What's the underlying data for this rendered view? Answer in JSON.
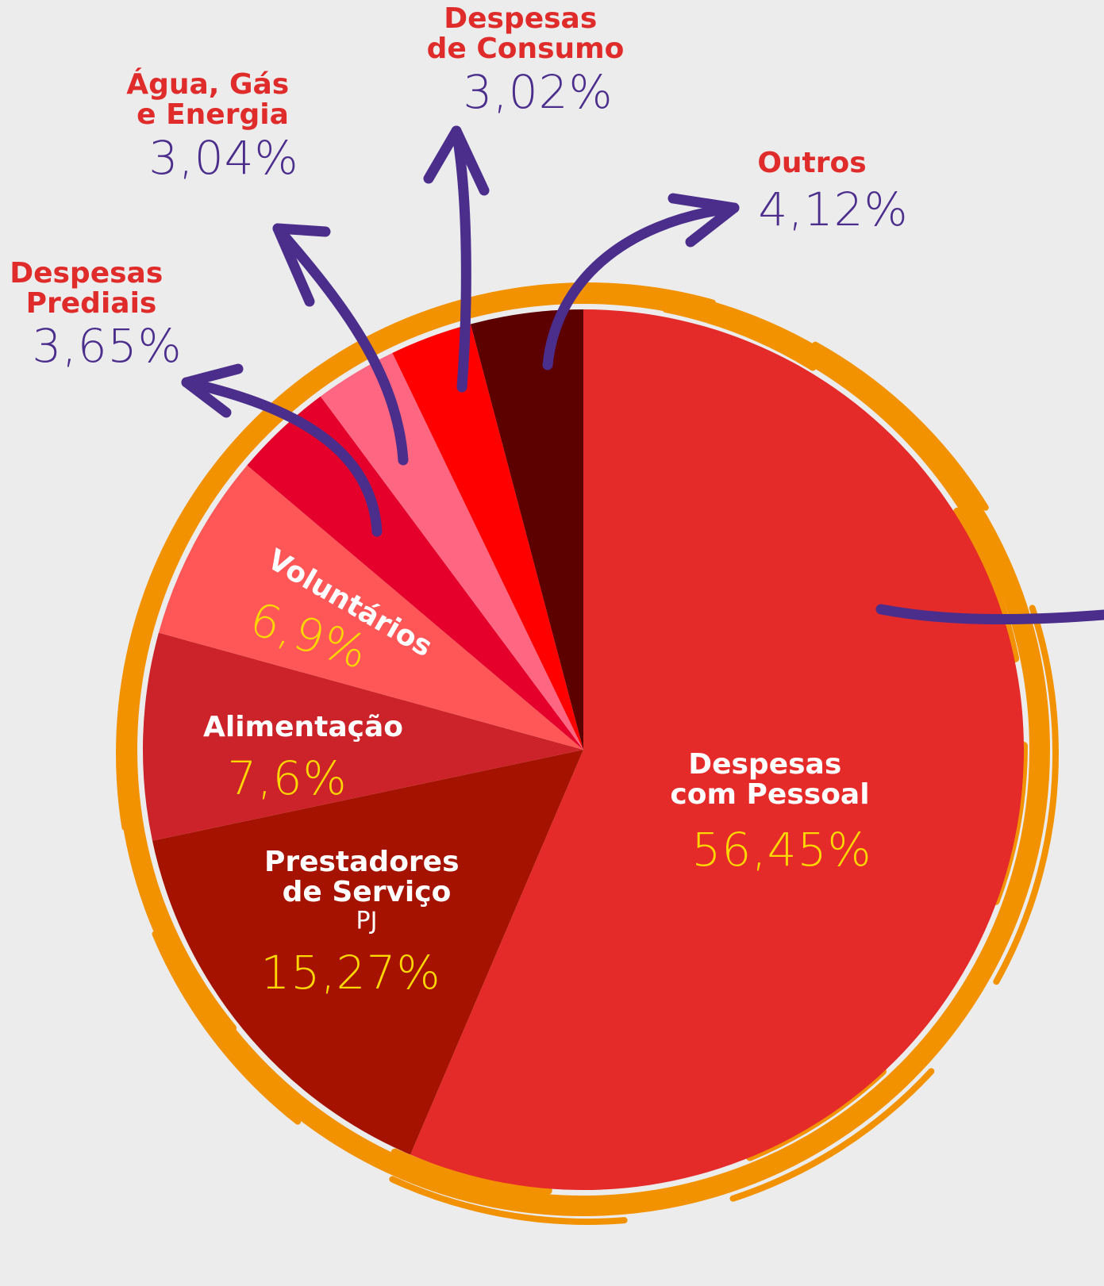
{
  "chart_data": {
    "type": "pie",
    "categories": [
      "Despesas com Pessoal",
      "Prestadores de Serviço",
      "Alimentação",
      "Voluntários",
      "Despesas Prediais",
      "Água, Gás e Energia",
      "Despesas de Consumo",
      "Outros"
    ],
    "values": [
      56.45,
      15.27,
      7.6,
      6.9,
      3.65,
      3.04,
      3.02,
      4.12
    ],
    "value_labels": [
      "56,45%",
      "15,27%",
      "7,6%",
      "6,9%",
      "3,65%",
      "3,04%",
      "3,02%",
      "4,12%"
    ],
    "colors": [
      "#e52a2a",
      "#a51200",
      "#cc2229",
      "#ff5757",
      "#e4002b",
      "#ff6681",
      "#ff0000",
      "#5c0000"
    ],
    "annotations": [
      {
        "text": "PJ"
      }
    ]
  }
}
